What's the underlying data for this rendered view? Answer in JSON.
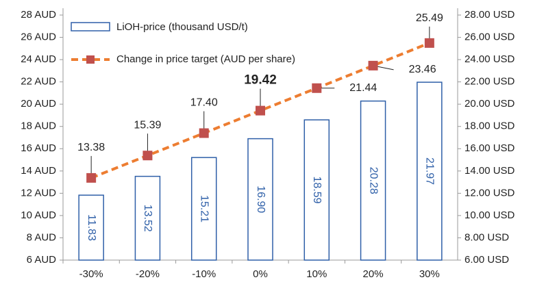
{
  "chart_data": {
    "type": "combo",
    "categories": [
      "-30%",
      "-20%",
      "-10%",
      "0%",
      "10%",
      "20%",
      "30%"
    ],
    "series": [
      {
        "name": "LiOH-price  (thousand USD/t)",
        "type": "bar",
        "axis": "y2",
        "color": "#2e5fa8",
        "values": [
          11.83,
          13.52,
          15.21,
          16.9,
          18.59,
          20.28,
          21.97
        ],
        "value_labels": [
          "11.83",
          "13.52",
          "15.21",
          "16.90",
          "18.59",
          "20.28",
          "21.97"
        ]
      },
      {
        "name": "Change in price target (AUD per share)",
        "type": "line",
        "color": "#ed7d31",
        "marker_color": "#c0504d",
        "values": [
          13.38,
          15.39,
          17.4,
          19.42,
          21.44,
          23.46,
          25.49
        ],
        "value_labels": [
          "13.38",
          "15.39",
          "17.40",
          "19.42",
          "21.44",
          "23.46",
          "25.49"
        ]
      }
    ],
    "ylim": [
      6,
      28
    ],
    "yticks": [
      {
        "value": 6,
        "label": "6 AUD"
      },
      {
        "value": 8,
        "label": "8 AUD"
      },
      {
        "value": 10,
        "label": "10 AUD"
      },
      {
        "value": 12,
        "label": "12 AUD"
      },
      {
        "value": 14,
        "label": "14 AUD"
      },
      {
        "value": 16,
        "label": "16 AUD"
      },
      {
        "value": 18,
        "label": "18 AUD"
      },
      {
        "value": 20,
        "label": "20 AUD"
      },
      {
        "value": 22,
        "label": "22 AUD"
      },
      {
        "value": 24,
        "label": "24 AUD"
      },
      {
        "value": 26,
        "label": "26 AUD"
      },
      {
        "value": 28,
        "label": "28 AUD"
      }
    ],
    "y2lim": [
      6,
      28
    ],
    "y2ticks": [
      {
        "value": 6,
        "label": "6.00 USD"
      },
      {
        "value": 8,
        "label": "8.00 USD"
      },
      {
        "value": 10,
        "label": "10.00 USD"
      },
      {
        "value": 12,
        "label": "12.00 USD"
      },
      {
        "value": 14,
        "label": "14.00 USD"
      },
      {
        "value": 16,
        "label": "16.00 USD"
      },
      {
        "value": 18,
        "label": "18.00 USD"
      },
      {
        "value": 20,
        "label": "20.00 USD"
      },
      {
        "value": 22,
        "label": "22.00 USD"
      },
      {
        "value": 24,
        "label": "24.00 USD"
      },
      {
        "value": 26,
        "label": "26.00 USD"
      },
      {
        "value": 28,
        "label": "28.00 USD"
      }
    ],
    "legend": "upper left",
    "grid": false
  }
}
